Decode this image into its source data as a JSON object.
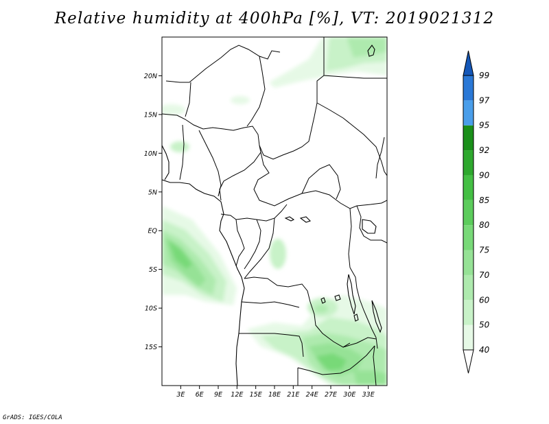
{
  "title": "Relative humidity at 400hPa [%], VT: 2019021312",
  "footer": "GrADS: IGES/COLA",
  "map": {
    "lon_range": [
      0,
      36
    ],
    "lat_range": [
      -20,
      25
    ],
    "lat_ticks": [
      {
        "value": 20,
        "label": "20N"
      },
      {
        "value": 15,
        "label": "15N"
      },
      {
        "value": 10,
        "label": "10N"
      },
      {
        "value": 5,
        "label": "5N"
      },
      {
        "value": 0,
        "label": "EQ"
      },
      {
        "value": -5,
        "label": "5S"
      },
      {
        "value": -10,
        "label": "10S"
      },
      {
        "value": -15,
        "label": "15S"
      }
    ],
    "lon_ticks": [
      {
        "value": 3,
        "label": "3E"
      },
      {
        "value": 6,
        "label": "6E"
      },
      {
        "value": 9,
        "label": "9E"
      },
      {
        "value": 12,
        "label": "12E"
      },
      {
        "value": 15,
        "label": "15E"
      },
      {
        "value": 18,
        "label": "18E"
      },
      {
        "value": 21,
        "label": "21E"
      },
      {
        "value": 24,
        "label": "24E"
      },
      {
        "value": 27,
        "label": "27E"
      },
      {
        "value": 30,
        "label": "30E"
      },
      {
        "value": 33,
        "label": "33E"
      }
    ]
  },
  "colorbar": {
    "levels": [
      "40",
      "50",
      "60",
      "70",
      "75",
      "80",
      "85",
      "90",
      "92",
      "95",
      "97",
      "99"
    ],
    "colors": [
      "#ffffff",
      "#e6f9e6",
      "#c8f2c8",
      "#aeeaae",
      "#96e296",
      "#78d978",
      "#5ccc5c",
      "#44bf44",
      "#2ea82e",
      "#1a8f1a",
      "#4a9eea",
      "#2a78d6",
      "#1457b8"
    ]
  }
}
